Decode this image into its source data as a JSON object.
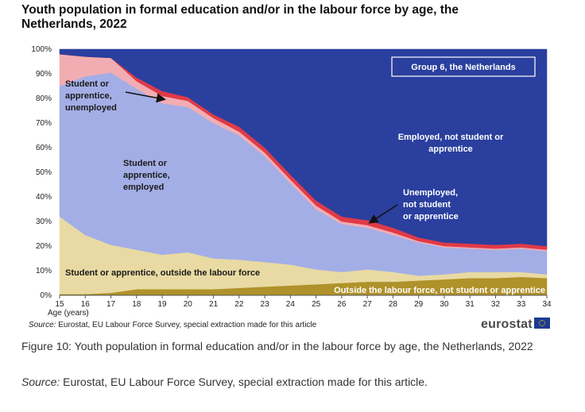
{
  "title": "Youth population in formal education and/or in the labour force by age, the Netherlands, 2022",
  "source_small": {
    "label": "Source:",
    "text": " Eurostat, EU Labour Force Survey, special extraction made for this article"
  },
  "logo_text": "eurostat",
  "caption": "Figure 10: Youth population in formal education and/or in the labour force by age, the Netherlands, 2022",
  "caption_source": {
    "label": "Source:",
    "text": " Eurostat, EU Labour Force Survey, special extraction made for this article."
  },
  "chart_data": {
    "type": "area",
    "stacked": true,
    "group_label": "Group 6, the Netherlands",
    "xlabel": "Age (years)",
    "ylabel": "",
    "ylim": [
      0,
      100
    ],
    "yticks": [
      "0%",
      "10%",
      "20%",
      "30%",
      "40%",
      "50%",
      "60%",
      "70%",
      "80%",
      "90%",
      "100%"
    ],
    "x": [
      15,
      16,
      17,
      18,
      19,
      20,
      21,
      22,
      23,
      24,
      25,
      26,
      27,
      28,
      29,
      30,
      31,
      32,
      33,
      34
    ],
    "series": [
      {
        "name": "Outside the labour force, not student or apprentice",
        "color": "#b0922a",
        "values": [
          0.5,
          0.5,
          1,
          2.5,
          2.5,
          2.5,
          2.5,
          3,
          3.5,
          4,
          4.5,
          5,
          5.5,
          5.5,
          6,
          6.5,
          7,
          7,
          7.5,
          7
        ]
      },
      {
        "name": "Student or apprentice, outside the labour force",
        "color": "#e8daa2",
        "values": [
          31.5,
          24,
          19.5,
          16,
          14,
          15,
          12.5,
          11.5,
          10,
          8.5,
          6,
          4.5,
          5,
          4,
          2,
          2,
          2.5,
          2.5,
          2,
          1.5
        ]
      },
      {
        "name": "Student or apprentice, employed",
        "color": "#a3aee6",
        "values": [
          53,
          64.5,
          70,
          65.5,
          61.5,
          59,
          55,
          50.5,
          43,
          33,
          24.5,
          19.5,
          17,
          15,
          13.5,
          11,
          9.5,
          9,
          9.5,
          9.5
        ]
      },
      {
        "name": "Student or apprentice, unemployed",
        "color": "#f2adb3",
        "values": [
          13,
          8,
          6,
          3,
          3,
          2.5,
          2,
          1.5,
          1.5,
          1.5,
          1.5,
          1,
          1,
          1,
          0.5,
          0.5,
          0.5,
          0.5,
          0.5,
          0.5
        ]
      },
      {
        "name": "Unemployed, not student or apprentice",
        "color": "#e03a47",
        "values": [
          0,
          0,
          0,
          1.5,
          2,
          1.5,
          1.5,
          2,
          2,
          2,
          2,
          2,
          2,
          2,
          1.5,
          1.5,
          1.5,
          1.5,
          1.5,
          1.5
        ]
      },
      {
        "name": "Employed, not student or apprentice",
        "color": "#2a3f9e",
        "values": [
          2,
          3,
          3.5,
          11.5,
          17,
          19.5,
          26.5,
          31.5,
          40,
          51,
          61.5,
          68,
          69.5,
          72.5,
          76.5,
          78.5,
          79,
          79.5,
          79,
          80
        ]
      }
    ],
    "annotations": [
      {
        "id": "stu-unemp",
        "lines": [
          "Student or",
          "apprentice,",
          "unemployed"
        ],
        "color": "#1a1a1a"
      },
      {
        "id": "stu-emp",
        "lines": [
          "Student or",
          "apprentice,",
          "employed"
        ],
        "color": "#1a1a1a"
      },
      {
        "id": "stu-out",
        "lines": [
          "Student or apprentice, outside the labour force"
        ],
        "color": "#1a1a1a"
      },
      {
        "id": "out-lf",
        "lines": [
          "Outside the labour force, not student or apprentice"
        ],
        "color": "#ffffff"
      },
      {
        "id": "emp",
        "lines": [
          "Employed, not student or",
          "apprentice"
        ],
        "color": "#ffffff"
      },
      {
        "id": "unemp",
        "lines": [
          "Unemployed,",
          "not student",
          "or apprentice"
        ],
        "color": "#ffffff"
      }
    ]
  }
}
